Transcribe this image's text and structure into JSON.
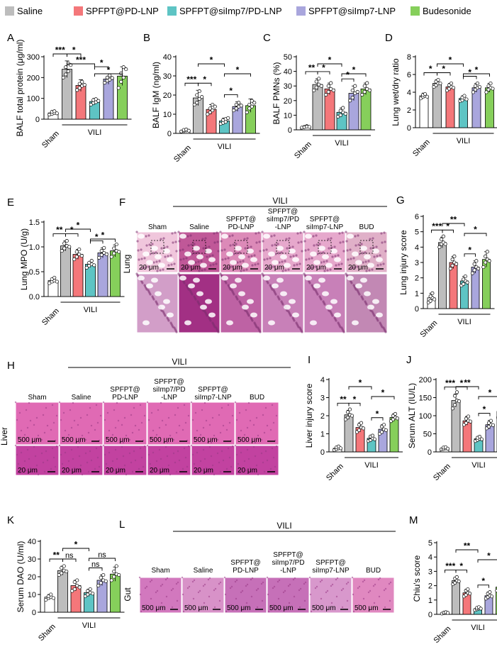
{
  "legend": [
    {
      "label": "Saline",
      "color": "#bdbdbd"
    },
    {
      "label": "SPFPT@PD-LNP",
      "color": "#f4777a"
    },
    {
      "label": "SPFPT@siImp7/PD-LNP",
      "color": "#5ec4c4"
    },
    {
      "label": "SPFPT@siImp7-LNP",
      "color": "#a9a6dd"
    },
    {
      "label": "Budesonide",
      "color": "#86cf5b"
    }
  ],
  "group_colors": [
    "#ffffff",
    "#bdbdbd",
    "#f4777a",
    "#5ec4c4",
    "#a9a6dd",
    "#86cf5b"
  ],
  "sham_label": "Sham",
  "vili_label": "VILI",
  "chart_data": [
    {
      "panel": "A",
      "type": "bar",
      "ylabel": "BALF total protein (μg/ml)",
      "ylim": [
        0,
        300
      ],
      "yticks": [
        0,
        100,
        200,
        300
      ],
      "categories": [
        "Sham",
        "Saline",
        "SPFPT@PD-LNP",
        "SPFPT@siImp7/PD-LNP",
        "SPFPT@siImp7-LNP",
        "Budesonide"
      ],
      "values": [
        30,
        240,
        162,
        85,
        193,
        207
      ],
      "errors": [
        8,
        40,
        28,
        15,
        25,
        45
      ],
      "points": [
        [
          22,
          25,
          30,
          35,
          38,
          28
        ],
        [
          200,
          215,
          230,
          250,
          268,
          260
        ],
        [
          140,
          150,
          160,
          170,
          180,
          165
        ],
        [
          70,
          78,
          82,
          92,
          96,
          88
        ],
        [
          175,
          185,
          190,
          200,
          210,
          198
        ],
        [
          150,
          180,
          200,
          220,
          250,
          240
        ]
      ],
      "significance": [
        {
          "a": 0,
          "b": 1,
          "label": "***"
        },
        {
          "a": 1,
          "b": 2,
          "label": "*"
        },
        {
          "a": 1,
          "b": 3,
          "label": "***"
        },
        {
          "a": 3,
          "b": 4,
          "label": "*"
        },
        {
          "a": 3,
          "b": 5,
          "label": "*"
        }
      ]
    },
    {
      "panel": "B",
      "type": "bar",
      "ylabel": "BALF IgM (ng/ml)",
      "ylim": [
        0,
        40
      ],
      "yticks": [
        0,
        10,
        20,
        30,
        40
      ],
      "categories": [
        "Sham",
        "Saline",
        "SPFPT@PD-LNP",
        "SPFPT@siImp7/PD-LNP",
        "SPFPT@siImp7-LNP",
        "Budesonide"
      ],
      "values": [
        1.5,
        18.5,
        12.5,
        6.5,
        14,
        14.5
      ],
      "errors": [
        0.5,
        4,
        2.5,
        1.5,
        2.5,
        3.5
      ],
      "points": [
        [
          1,
          1.2,
          1.5,
          1.8,
          2,
          1.4
        ],
        [
          15,
          16,
          18,
          20,
          22,
          19
        ],
        [
          10,
          11,
          12,
          13,
          15,
          14
        ],
        [
          5,
          5.5,
          6,
          7,
          7.5,
          8
        ],
        [
          12,
          13,
          14,
          15,
          16,
          14.5
        ],
        [
          11,
          13,
          14,
          15,
          17,
          16
        ]
      ],
      "significance": [
        {
          "a": 0,
          "b": 1,
          "label": "***"
        },
        {
          "a": 1,
          "b": 2,
          "label": "*"
        },
        {
          "a": 1,
          "b": 3,
          "label": "*"
        },
        {
          "a": 3,
          "b": 4,
          "label": "*"
        },
        {
          "a": 3,
          "b": 5,
          "label": "*"
        }
      ]
    },
    {
      "panel": "C",
      "type": "bar",
      "ylabel": "BALF PMNs (%)",
      "ylim": [
        0,
        50
      ],
      "yticks": [
        0,
        10,
        20,
        30,
        40,
        50
      ],
      "categories": [
        "Sham",
        "Saline",
        "SPFPT@PD-LNP",
        "SPFPT@siImp7/PD-LNP",
        "SPFPT@siImp7-LNP",
        "Budesonide"
      ],
      "values": [
        2,
        31,
        28,
        12,
        25,
        28
      ],
      "errors": [
        0.8,
        4,
        4,
        3,
        5,
        4
      ],
      "points": [
        [
          1.5,
          2,
          2.5,
          1.8,
          2.2,
          2
        ],
        [
          27,
          29,
          31,
          33,
          35,
          30
        ],
        [
          24,
          26,
          28,
          30,
          32,
          27
        ],
        [
          9,
          10,
          12,
          13,
          15,
          11
        ],
        [
          20,
          22,
          25,
          27,
          30,
          26
        ],
        [
          24,
          26,
          28,
          30,
          32,
          27
        ]
      ],
      "significance": [
        {
          "a": 0,
          "b": 1,
          "label": "**"
        },
        {
          "a": 1,
          "b": 2,
          "label": "*"
        },
        {
          "a": 1,
          "b": 3,
          "label": "*"
        },
        {
          "a": 3,
          "b": 4,
          "label": "*"
        },
        {
          "a": 3,
          "b": 5,
          "label": "*"
        }
      ]
    },
    {
      "panel": "D",
      "type": "bar",
      "ylabel": "Lung wet/dry ratio",
      "ylim": [
        0,
        8
      ],
      "yticks": [
        0,
        2,
        4,
        6,
        8
      ],
      "categories": [
        "Sham",
        "Saline",
        "SPFPT@PD-LNP",
        "SPFPT@siImp7/PD-LNP",
        "SPFPT@siImp7-LNP",
        "Budesonide"
      ],
      "values": [
        3.6,
        5.0,
        4.6,
        3.3,
        4.5,
        4.5
      ],
      "errors": [
        0.3,
        0.4,
        0.4,
        0.3,
        0.5,
        0.5
      ],
      "points": [
        [
          3.3,
          3.5,
          3.6,
          3.7,
          3.8,
          3.5
        ],
        [
          4.6,
          4.8,
          5.0,
          5.2,
          5.4,
          5.0
        ],
        [
          4.2,
          4.4,
          4.6,
          4.8,
          5.0,
          4.5
        ],
        [
          3.0,
          3.1,
          3.3,
          3.4,
          3.6,
          3.2
        ],
        [
          4.0,
          4.3,
          4.5,
          4.7,
          5.0,
          4.6
        ],
        [
          4.0,
          4.3,
          4.5,
          4.7,
          5.0,
          4.4
        ]
      ],
      "significance": [
        {
          "a": 0,
          "b": 1,
          "label": "*"
        },
        {
          "a": 1,
          "b": 2,
          "label": "*"
        },
        {
          "a": 1,
          "b": 3,
          "label": "*"
        },
        {
          "a": 3,
          "b": 4,
          "label": "*"
        },
        {
          "a": 3,
          "b": 5,
          "label": "*"
        }
      ]
    },
    {
      "panel": "E",
      "type": "bar",
      "ylabel": "Lung MPO (U/g)",
      "ylim": [
        0,
        1.5
      ],
      "yticks": [
        0.0,
        0.5,
        1.0,
        1.5
      ],
      "categories": [
        "Sham",
        "Saline",
        "SPFPT@PD-LNP",
        "SPFPT@siImp7/PD-LNP",
        "SPFPT@siImp7-LNP",
        "Budesonide"
      ],
      "values": [
        0.32,
        1.02,
        0.85,
        0.65,
        0.88,
        0.92
      ],
      "errors": [
        0.05,
        0.1,
        0.1,
        0.06,
        0.1,
        0.12
      ],
      "points": [
        [
          0.27,
          0.3,
          0.32,
          0.35,
          0.38,
          0.3
        ],
        [
          0.92,
          0.97,
          1.02,
          1.07,
          1.12,
          1.0
        ],
        [
          0.75,
          0.8,
          0.85,
          0.9,
          0.95,
          0.82
        ],
        [
          0.58,
          0.62,
          0.65,
          0.68,
          0.72,
          0.63
        ],
        [
          0.78,
          0.84,
          0.88,
          0.92,
          0.98,
          0.85
        ],
        [
          0.8,
          0.87,
          0.92,
          0.97,
          1.05,
          0.9
        ]
      ],
      "significance": [
        {
          "a": 0,
          "b": 1,
          "label": "**"
        },
        {
          "a": 1,
          "b": 2,
          "label": "*"
        },
        {
          "a": 1,
          "b": 3,
          "label": "*"
        },
        {
          "a": 3,
          "b": 4,
          "label": "*"
        },
        {
          "a": 3,
          "b": 5,
          "label": "*"
        }
      ]
    },
    {
      "panel": "G",
      "type": "bar",
      "ylabel": "Lung injury score",
      "ylim": [
        0,
        6
      ],
      "yticks": [
        0,
        1,
        2,
        3,
        4,
        5,
        6
      ],
      "categories": [
        "Sham",
        "Saline",
        "SPFPT@PD-LNP",
        "SPFPT@siImp7/PD-LNP",
        "SPFPT@siImp7-LNP",
        "Budesonide"
      ],
      "values": [
        0.7,
        4.3,
        3.0,
        1.8,
        2.7,
        3.2
      ],
      "errors": [
        0.3,
        0.35,
        0.4,
        0.3,
        0.4,
        0.5
      ],
      "points": [
        [
          0.4,
          0.5,
          0.7,
          0.8,
          1.0,
          0.6
        ],
        [
          4.0,
          4.2,
          4.3,
          4.5,
          4.7,
          4.2
        ],
        [
          2.6,
          2.8,
          3.0,
          3.2,
          3.4,
          2.9
        ],
        [
          1.5,
          1.6,
          1.8,
          1.9,
          2.1,
          1.7
        ],
        [
          2.3,
          2.5,
          2.7,
          2.9,
          3.1,
          2.6
        ],
        [
          2.7,
          3.0,
          3.2,
          3.4,
          3.7,
          3.1
        ]
      ],
      "significance": [
        {
          "a": 0,
          "b": 1,
          "label": "***"
        },
        {
          "a": 1,
          "b": 2,
          "label": "*"
        },
        {
          "a": 1,
          "b": 3,
          "label": "**"
        },
        {
          "a": 3,
          "b": 4,
          "label": "*"
        },
        {
          "a": 3,
          "b": 5,
          "label": "*"
        }
      ]
    },
    {
      "panel": "I",
      "type": "bar",
      "ylabel": "Liver injury score",
      "ylim": [
        0,
        4
      ],
      "yticks": [
        0,
        1,
        2,
        3,
        4
      ],
      "categories": [
        "Sham",
        "Saline",
        "SPFPT@PD-LNP",
        "SPFPT@siImp7/PD-LNP",
        "SPFPT@siImp7-LNP",
        "Budesonide"
      ],
      "values": [
        0.2,
        2.05,
        1.35,
        0.75,
        1.25,
        1.9
      ],
      "errors": [
        0.1,
        0.25,
        0.25,
        0.15,
        0.25,
        0.2
      ],
      "points": [
        [
          0.1,
          0.15,
          0.2,
          0.25,
          0.3,
          0.2
        ],
        [
          1.8,
          1.9,
          2.05,
          2.2,
          2.35,
          2.0
        ],
        [
          1.1,
          1.2,
          1.35,
          1.5,
          1.6,
          1.3
        ],
        [
          0.6,
          0.65,
          0.75,
          0.85,
          0.9,
          0.7
        ],
        [
          1.0,
          1.1,
          1.25,
          1.4,
          1.5,
          1.2
        ],
        [
          1.7,
          1.8,
          1.9,
          2.0,
          2.1,
          1.85
        ]
      ],
      "significance": [
        {
          "a": 0,
          "b": 1,
          "label": "**"
        },
        {
          "a": 1,
          "b": 2,
          "label": "*"
        },
        {
          "a": 1,
          "b": 3,
          "label": "*"
        },
        {
          "a": 3,
          "b": 4,
          "label": "*"
        },
        {
          "a": 3,
          "b": 5,
          "label": "*"
        }
      ]
    },
    {
      "panel": "J",
      "type": "bar",
      "ylabel": "Serum ALT (IU/L)",
      "ylim": [
        0,
        200
      ],
      "yticks": [
        0,
        50,
        100,
        150,
        200
      ],
      "categories": [
        "Sham",
        "Saline",
        "SPFPT@PD-LNP",
        "SPFPT@siImp7/PD-LNP",
        "SPFPT@siImp7-LNP",
        "Budesonide"
      ],
      "values": [
        10,
        142,
        86,
        36,
        75,
        112
      ],
      "errors": [
        3,
        18,
        12,
        6,
        12,
        18
      ],
      "points": [
        [
          7,
          8,
          10,
          12,
          13,
          9
        ],
        [
          120,
          130,
          142,
          155,
          165,
          140
        ],
        [
          75,
          80,
          86,
          92,
          98,
          84
        ],
        [
          30,
          33,
          36,
          39,
          42,
          35
        ],
        [
          65,
          70,
          75,
          80,
          86,
          74
        ],
        [
          95,
          104,
          112,
          120,
          130,
          110
        ]
      ],
      "significance": [
        {
          "a": 0,
          "b": 1,
          "label": "***"
        },
        {
          "a": 1,
          "b": 2,
          "label": "*"
        },
        {
          "a": 1,
          "b": 3,
          "label": "**"
        },
        {
          "a": 3,
          "b": 4,
          "label": "*"
        },
        {
          "a": 3,
          "b": 5,
          "label": "*"
        }
      ]
    },
    {
      "panel": "K",
      "type": "bar",
      "ylabel": "Serum DAO (U/ml)",
      "ylim": [
        0,
        40
      ],
      "yticks": [
        0,
        10,
        20,
        30,
        40
      ],
      "categories": [
        "Sham",
        "Saline",
        "SPFPT@PD-LNP",
        "SPFPT@siImp7/PD-LNP",
        "SPFPT@siImp7-LNP",
        "Budesonide"
      ],
      "values": [
        8.5,
        23.5,
        15,
        11,
        18,
        21.5
      ],
      "errors": [
        1.5,
        2.5,
        3,
        2,
        3,
        4
      ],
      "points": [
        [
          7,
          8,
          8.5,
          9,
          10,
          8
        ],
        [
          21,
          22,
          23.5,
          25,
          26,
          23
        ],
        [
          12,
          13,
          15,
          17,
          18,
          14
        ],
        [
          9,
          10,
          11,
          12,
          13,
          10.5
        ],
        [
          15,
          16.5,
          18,
          19.5,
          21,
          17.5
        ],
        [
          18,
          20,
          21.5,
          23,
          26,
          21
        ]
      ],
      "significance": [
        {
          "a": 0,
          "b": 1,
          "label": "**"
        },
        {
          "a": 1,
          "b": 2,
          "label": "ns"
        },
        {
          "a": 1,
          "b": 3,
          "label": "*"
        },
        {
          "a": 3,
          "b": 4,
          "label": "ns"
        },
        {
          "a": 3,
          "b": 5,
          "label": "ns"
        }
      ]
    },
    {
      "panel": "M",
      "type": "bar",
      "ylabel": "Chiu's score",
      "ylim": [
        0,
        5
      ],
      "yticks": [
        0,
        1,
        2,
        3,
        4,
        5
      ],
      "categories": [
        "Sham",
        "Saline",
        "SPFPT@PD-LNP",
        "SPFPT@siImp7/PD-LNP",
        "SPFPT@siImp7-LNP",
        "Budesonide"
      ],
      "values": [
        0.1,
        2.35,
        1.5,
        0.4,
        1.3,
        1.9
      ],
      "errors": [
        0.05,
        0.25,
        0.25,
        0.1,
        0.25,
        0.25
      ],
      "points": [
        [
          0.05,
          0.08,
          0.1,
          0.12,
          0.15,
          0.1
        ],
        [
          2.1,
          2.2,
          2.35,
          2.5,
          2.6,
          2.3
        ],
        [
          1.25,
          1.35,
          1.5,
          1.65,
          1.75,
          1.45
        ],
        [
          0.3,
          0.35,
          0.4,
          0.45,
          0.5,
          0.4
        ],
        [
          1.1,
          1.2,
          1.3,
          1.45,
          1.55,
          1.25
        ],
        [
          1.65,
          1.75,
          1.9,
          2.05,
          2.15,
          1.85
        ]
      ],
      "significance": [
        {
          "a": 0,
          "b": 1,
          "label": "***"
        },
        {
          "a": 1,
          "b": 2,
          "label": "*"
        },
        {
          "a": 1,
          "b": 3,
          "label": "**"
        },
        {
          "a": 3,
          "b": 4,
          "label": "*"
        },
        {
          "a": 3,
          "b": 5,
          "label": "*"
        }
      ]
    }
  ],
  "image_panels": [
    {
      "panel": "F",
      "row_label": "Lung",
      "columns": [
        "Sham",
        "Saline",
        "SPFPT@\nPD-LNP",
        "SPFPT@\nsiImp7/PD\n-LNP",
        "SPFPT@\nsiImp7-LNP",
        "BUD"
      ],
      "scale_bar": "20 μm",
      "colors": [
        "#f0c6dc",
        "#c05898",
        "#dc8ab8",
        "#e6a8cc",
        "#e6a8cc",
        "#e0b0c8"
      ]
    },
    {
      "panel": "H",
      "row_label": "Liver",
      "columns": [
        "Sham",
        "Saline",
        "SPFPT@\nPD-LNP",
        "SPFPT@\nsiImp7/PD\n-LNP",
        "SPFPT@\nsiImp7-LNP",
        "BUD"
      ],
      "scale_bar_top": "500 μm",
      "scale_bar_bottom": "20 μm",
      "colors": [
        "#e06ab4",
        "#e06ab4",
        "#e06ab4",
        "#e06ab4",
        "#e06ab4",
        "#e06ab4"
      ]
    },
    {
      "panel": "L",
      "row_label": "Gut",
      "columns": [
        "Sham",
        "Saline",
        "SPFPT@\nPD-LNP",
        "SPFPT@\nsiImp7/PD\n-LNP",
        "SPFPT@\nsiImp7-LNP",
        "BUD"
      ],
      "scale_bar": "500 μm",
      "colors": [
        "#d278be",
        "#d892c8",
        "#c670b8",
        "#c670b8",
        "#d898cc",
        "#e088c0"
      ]
    }
  ]
}
